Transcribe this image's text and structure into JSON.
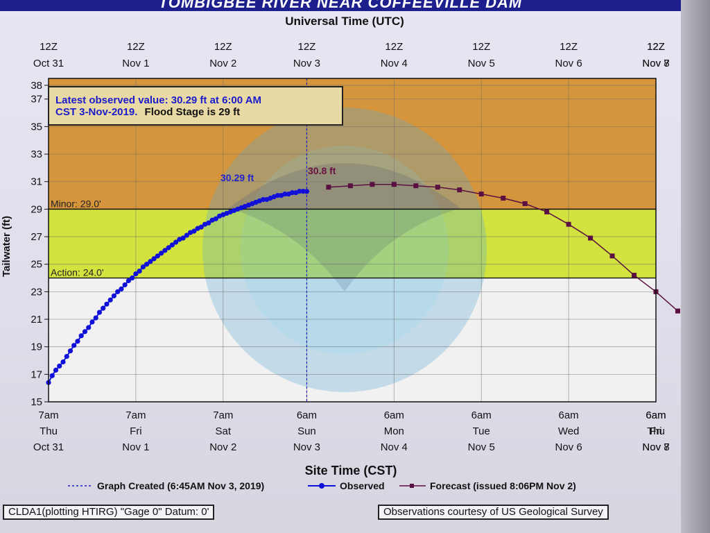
{
  "header": {
    "title": "TOMBIGBEE RIVER NEAR COFFEEVILLE DAM"
  },
  "chart_data": {
    "type": "line",
    "title": "TOMBIGBEE RIVER NEAR COFFEEVILLE DAM",
    "top_axis_label": "Universal Time (UTC)",
    "xlabel": "Site Time (CST)",
    "ylabel": "Tailwater (ft)",
    "ylim": [
      15,
      38.5
    ],
    "yticks": [
      15,
      17,
      19,
      21,
      23,
      25,
      27,
      29,
      31,
      33,
      35,
      37,
      38
    ],
    "xlim_hours_from_oct31_7am": [
      0,
      167
    ],
    "top_ticks": [
      {
        "l1": "12Z",
        "l2": "Oct 31"
      },
      {
        "l1": "12Z",
        "l2": "Nov 1"
      },
      {
        "l1": "12Z",
        "l2": "Nov 2"
      },
      {
        "l1": "12Z",
        "l2": "Nov 3"
      },
      {
        "l1": "12Z",
        "l2": "Nov 4"
      },
      {
        "l1": "12Z",
        "l2": "Nov 5"
      },
      {
        "l1": "12Z",
        "l2": "Nov 6"
      },
      {
        "l1": "12Z",
        "l2": "Nov 7"
      },
      {
        "l1": "12Z",
        "l2": "Nov 8"
      }
    ],
    "bottom_ticks": [
      {
        "l1": "7am",
        "l2": "Thu",
        "l3": "Oct 31"
      },
      {
        "l1": "7am",
        "l2": "Fri",
        "l3": "Nov 1"
      },
      {
        "l1": "7am",
        "l2": "Sat",
        "l3": "Nov 2"
      },
      {
        "l1": "6am",
        "l2": "Sun",
        "l3": "Nov 3"
      },
      {
        "l1": "6am",
        "l2": "Mon",
        "l3": "Nov 4"
      },
      {
        "l1": "6am",
        "l2": "Tue",
        "l3": "Nov 5"
      },
      {
        "l1": "6am",
        "l2": "Wed",
        "l3": "Nov 6"
      },
      {
        "l1": "6am",
        "l2": "Thu",
        "l3": "Nov 7"
      },
      {
        "l1": "6am",
        "l2": "Fri",
        "l3": "Nov 8"
      }
    ],
    "tick_hours": [
      0,
      24,
      48,
      71,
      95,
      119,
      143,
      167,
      191
    ],
    "grid": true,
    "bands": [
      {
        "from": 29,
        "to": 38.5,
        "color": "#d5953c"
      },
      {
        "from": 24,
        "to": 29,
        "color": "#d2e23e"
      },
      {
        "from": 15,
        "to": 24,
        "color": "#f1f1f1"
      }
    ],
    "thresholds": [
      {
        "name": "Minor",
        "value": 29.0,
        "label": "Minor: 29.0'"
      },
      {
        "name": "Action",
        "value": 24.0,
        "label": "Action: 24.0'"
      }
    ],
    "annotation_box": {
      "line1": "Latest observed value: 30.29 ft at 6:00 AM",
      "line2_a": "CST 3-Nov-2019.",
      "line2_b": "Flood Stage is 29 ft"
    },
    "peak_labels": {
      "observed": "30.29 ft",
      "forecast": "30.8 ft"
    },
    "created_hour": 71,
    "series": [
      {
        "name": "Observed",
        "color": "#1010d8",
        "start_hour": 0,
        "step_hours": 1,
        "values": [
          16.4,
          16.9,
          17.3,
          17.6,
          17.9,
          18.3,
          18.7,
          19.1,
          19.4,
          19.8,
          20.1,
          20.4,
          20.8,
          21.1,
          21.5,
          21.8,
          22.1,
          22.4,
          22.7,
          23.0,
          23.2,
          23.5,
          23.8,
          24.0,
          24.3,
          24.5,
          24.8,
          25.0,
          25.2,
          25.4,
          25.6,
          25.8,
          26.0,
          26.2,
          26.4,
          26.6,
          26.8,
          26.9,
          27.1,
          27.3,
          27.4,
          27.6,
          27.7,
          27.9,
          28.0,
          28.2,
          28.3,
          28.5,
          28.6,
          28.7,
          28.8,
          28.9,
          29.0,
          29.1,
          29.2,
          29.3,
          29.4,
          29.5,
          29.6,
          29.7,
          29.7,
          29.8,
          29.9,
          30.0,
          30.0,
          30.1,
          30.1,
          30.2,
          30.2,
          30.3,
          30.3,
          30.29
        ]
      },
      {
        "name": "Forecast",
        "color": "#5a1040",
        "start_hour": 77,
        "step_hours": 6,
        "values": [
          30.6,
          30.7,
          30.8,
          30.8,
          30.7,
          30.6,
          30.4,
          30.1,
          29.8,
          29.4,
          28.8,
          27.9,
          26.9,
          25.6,
          24.2,
          23.0,
          21.6
        ]
      }
    ],
    "legend": {
      "placement": "bottom",
      "created": "Graph Created (6:45AM Nov 3, 2019)",
      "observed": "Observed",
      "forecast": "Forecast (issued 8:06PM Nov 2)"
    }
  },
  "footer": {
    "left": "CLDA1(plotting HTIRG) \"Gage 0\" Datum: 0'",
    "right": "Observations courtesy of US Geological Survey"
  }
}
